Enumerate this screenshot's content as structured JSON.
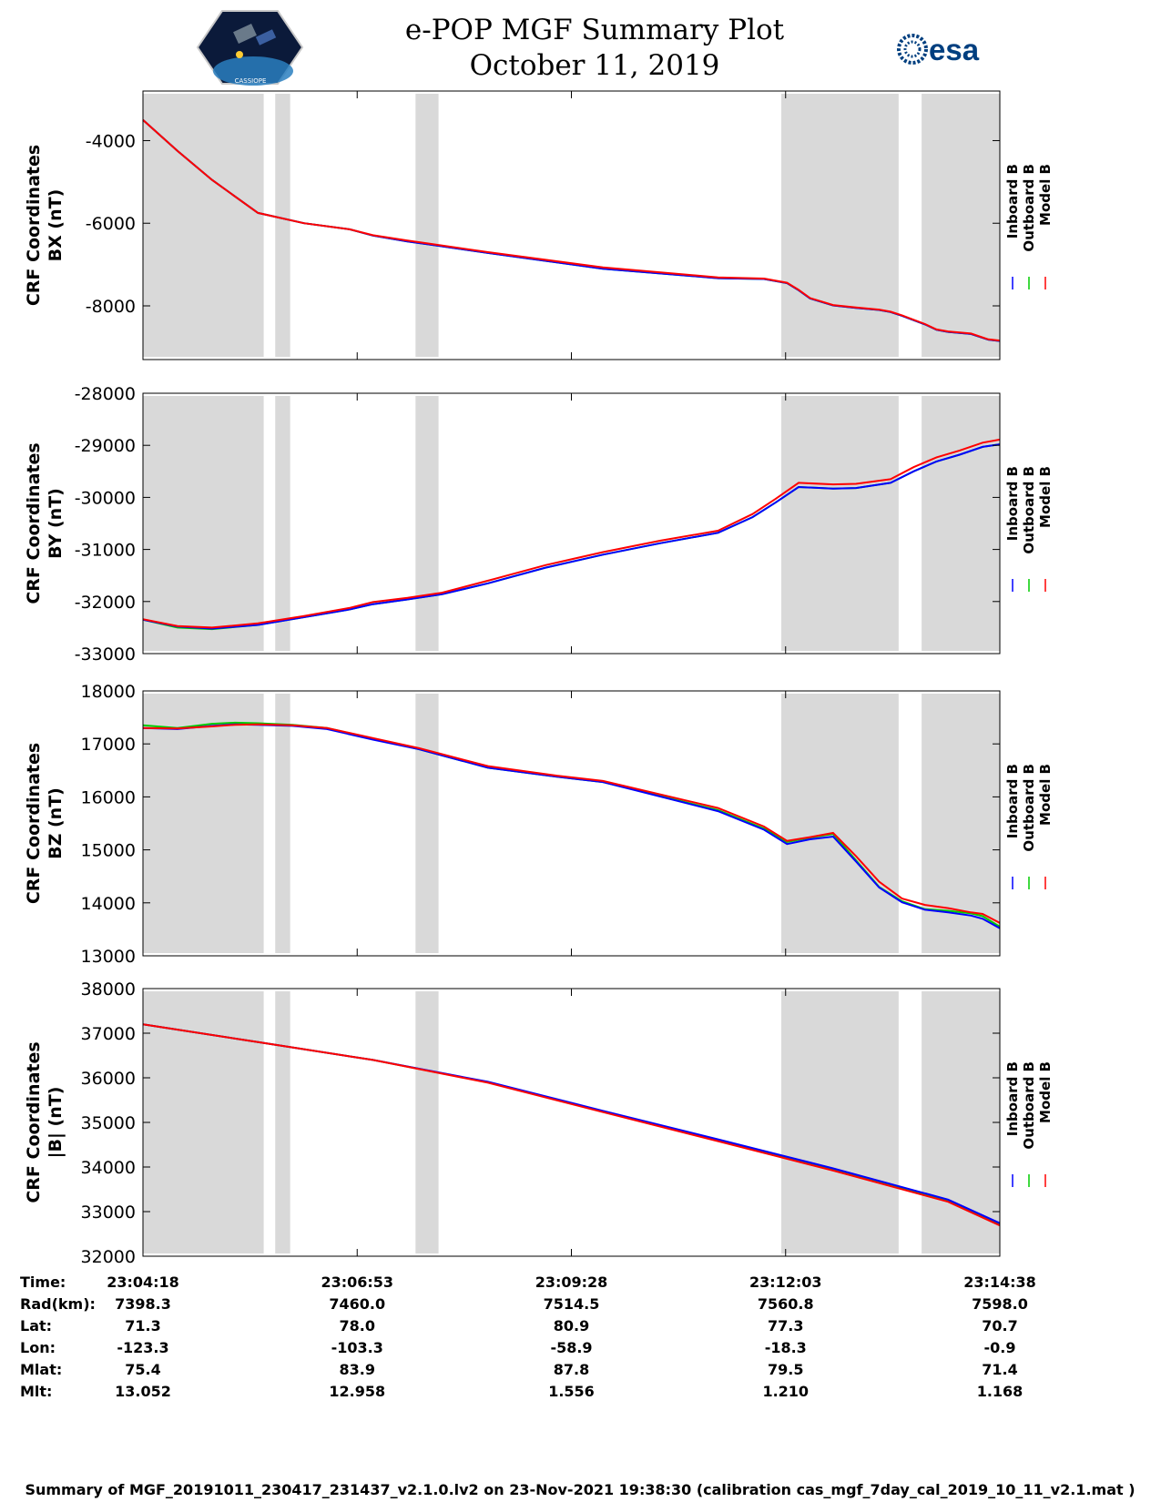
{
  "header": {
    "title_line1": "e-POP MGF Summary Plot",
    "title_line2": "October 11, 2019",
    "right_logo_text": "esa",
    "left_logo_text": "CASSIOPE"
  },
  "legend": [
    "Inboard B",
    "Outboard B",
    "Model B"
  ],
  "colors": {
    "inboard": "#0000ff",
    "outboard": "#00cc00",
    "model": "#ff0000",
    "shade": "#d9d9d9"
  },
  "chart_data": [
    {
      "type": "line",
      "title": "BX",
      "ylabel": [
        "CRF Coordinates",
        "BX (nT)"
      ],
      "ylim": [
        -9300,
        -2800
      ],
      "yticks": [
        -4000,
        -6000,
        -8000
      ],
      "x": [
        0,
        30,
        60,
        100,
        140,
        180,
        200,
        230,
        250,
        300,
        400,
        500,
        540,
        560,
        570,
        580,
        600,
        620,
        640,
        650,
        660,
        680,
        690,
        700,
        720,
        735,
        745
      ],
      "series": [
        {
          "name": "Outboard B",
          "values": [
            -3500,
            -4250,
            -4950,
            -5750,
            -6000,
            -6150,
            -6300,
            -6440,
            -6520,
            -6720,
            -7100,
            -7330,
            -7350,
            -7450,
            -7620,
            -7820,
            -7990,
            -8050,
            -8100,
            -8150,
            -8240,
            -8450,
            -8580,
            -8630,
            -8680,
            -8820,
            -8850
          ]
        },
        {
          "name": "Inboard B",
          "values": [
            -3500,
            -4250,
            -4950,
            -5750,
            -6000,
            -6150,
            -6300,
            -6440,
            -6520,
            -6720,
            -7100,
            -7330,
            -7350,
            -7450,
            -7620,
            -7820,
            -7990,
            -8050,
            -8100,
            -8150,
            -8240,
            -8450,
            -8580,
            -8630,
            -8680,
            -8820,
            -8850
          ]
        },
        {
          "name": "Model B",
          "values": [
            -3500,
            -4250,
            -4950,
            -5750,
            -6000,
            -6150,
            -6290,
            -6420,
            -6500,
            -6700,
            -7070,
            -7310,
            -7340,
            -7440,
            -7610,
            -7810,
            -7980,
            -8040,
            -8090,
            -8140,
            -8230,
            -8440,
            -8570,
            -8620,
            -8670,
            -8810,
            -8840
          ]
        }
      ]
    },
    {
      "type": "line",
      "title": "BY",
      "ylabel": [
        "CRF Coordinates",
        "BY (nT)"
      ],
      "ylim": [
        -33000,
        -28000
      ],
      "yticks": [
        -28000,
        -29000,
        -30000,
        -31000,
        -32000,
        -33000
      ],
      "x": [
        0,
        30,
        60,
        100,
        140,
        180,
        200,
        230,
        260,
        300,
        350,
        400,
        450,
        500,
        530,
        550,
        570,
        600,
        620,
        650,
        670,
        690,
        710,
        730,
        745
      ],
      "series": [
        {
          "name": "Outboard B",
          "values": [
            -32350,
            -32500,
            -32530,
            -32450,
            -32300,
            -32150,
            -32050,
            -31960,
            -31860,
            -31650,
            -31350,
            -31100,
            -30880,
            -30680,
            -30380,
            -30100,
            -29800,
            -29830,
            -29820,
            -29720,
            -29500,
            -29310,
            -29180,
            -29030,
            -28980
          ]
        },
        {
          "name": "Inboard B",
          "values": [
            -32350,
            -32480,
            -32520,
            -32450,
            -32300,
            -32150,
            -32050,
            -31960,
            -31860,
            -31650,
            -31350,
            -31100,
            -30880,
            -30680,
            -30380,
            -30100,
            -29800,
            -29830,
            -29820,
            -29720,
            -29500,
            -29310,
            -29180,
            -29030,
            -28980
          ]
        },
        {
          "name": "Model B",
          "values": [
            -32340,
            -32470,
            -32500,
            -32420,
            -32280,
            -32120,
            -32010,
            -31930,
            -31830,
            -31600,
            -31300,
            -31050,
            -30830,
            -30640,
            -30320,
            -30030,
            -29720,
            -29750,
            -29740,
            -29650,
            -29420,
            -29230,
            -29100,
            -28950,
            -28890
          ]
        }
      ]
    },
    {
      "type": "line",
      "title": "BZ",
      "ylabel": [
        "CRF Coordinates",
        "BZ (nT)"
      ],
      "ylim": [
        13000,
        18000
      ],
      "yticks": [
        18000,
        17000,
        16000,
        15000,
        14000,
        13000
      ],
      "x": [
        0,
        30,
        60,
        80,
        100,
        130,
        160,
        200,
        240,
        300,
        360,
        400,
        500,
        540,
        560,
        580,
        600,
        620,
        640,
        660,
        680,
        700,
        720,
        730,
        745
      ],
      "series": [
        {
          "name": "Outboard B",
          "values": [
            17350,
            17300,
            17380,
            17400,
            17390,
            17360,
            17300,
            17100,
            16900,
            16550,
            16380,
            16280,
            15750,
            15400,
            15150,
            15230,
            15300,
            14800,
            14300,
            14030,
            13880,
            13850,
            13800,
            13750,
            13550
          ]
        },
        {
          "name": "Inboard B",
          "values": [
            17300,
            17280,
            17340,
            17370,
            17360,
            17340,
            17280,
            17080,
            16900,
            16550,
            16380,
            16280,
            15730,
            15380,
            15110,
            15200,
            15250,
            14780,
            14290,
            14010,
            13870,
            13820,
            13760,
            13700,
            13520
          ]
        },
        {
          "name": "Model B",
          "values": [
            17300,
            17290,
            17330,
            17360,
            17370,
            17350,
            17300,
            17110,
            16920,
            16580,
            16400,
            16300,
            15790,
            15440,
            15170,
            15240,
            15320,
            14880,
            14400,
            14080,
            13960,
            13900,
            13820,
            13790,
            13620
          ]
        }
      ]
    },
    {
      "type": "line",
      "title": "|B|",
      "ylabel": [
        "CRF Coordinates",
        "|B| (nT)"
      ],
      "ylim": [
        32000,
        38000
      ],
      "yticks": [
        38000,
        37000,
        36000,
        35000,
        34000,
        33000,
        32000
      ],
      "x": [
        0,
        100,
        200,
        300,
        400,
        500,
        600,
        700,
        745
      ],
      "series": [
        {
          "name": "Outboard B",
          "values": [
            37200,
            36800,
            36400,
            35900,
            35250,
            34600,
            33950,
            33250,
            32720
          ]
        },
        {
          "name": "Inboard B",
          "values": [
            37200,
            36800,
            36400,
            35910,
            35260,
            34620,
            33970,
            33270,
            32740
          ]
        },
        {
          "name": "Model B",
          "values": [
            37200,
            36800,
            36400,
            35890,
            35230,
            34580,
            33920,
            33220,
            32690
          ]
        }
      ]
    }
  ],
  "xaxis": {
    "range": [
      0,
      745
    ],
    "tick_positions": [
      0,
      186.25,
      372.5,
      558.75,
      745
    ],
    "shaded_intervals": [
      [
        0,
        105
      ],
      [
        115,
        128
      ],
      [
        237,
        257
      ],
      [
        555,
        657
      ],
      [
        677,
        745
      ]
    ]
  },
  "ephemeris": {
    "row_labels": [
      "Time:",
      "Rad(km):",
      "Lat:",
      "Lon:",
      "Mlat:",
      "Mlt:"
    ],
    "columns": [
      [
        "23:04:18",
        "7398.3",
        "71.3",
        "-123.3",
        "75.4",
        "13.052"
      ],
      [
        "23:06:53",
        "7460.0",
        "78.0",
        "-103.3",
        "83.9",
        "12.958"
      ],
      [
        "23:09:28",
        "7514.5",
        "80.9",
        "-58.9",
        "87.8",
        "1.556"
      ],
      [
        "23:12:03",
        "7560.8",
        "77.3",
        "-18.3",
        "79.5",
        "1.210"
      ],
      [
        "23:14:38",
        "7598.0",
        "70.7",
        "-0.9",
        "71.4",
        "1.168"
      ]
    ]
  },
  "footer": "Summary of MGF_20191011_230417_231437_v2.1.0.lv2 on 23-Nov-2021 19:38:30 (calibration cas_mgf_7day_cal_2019_10_11_v2.1.mat )"
}
